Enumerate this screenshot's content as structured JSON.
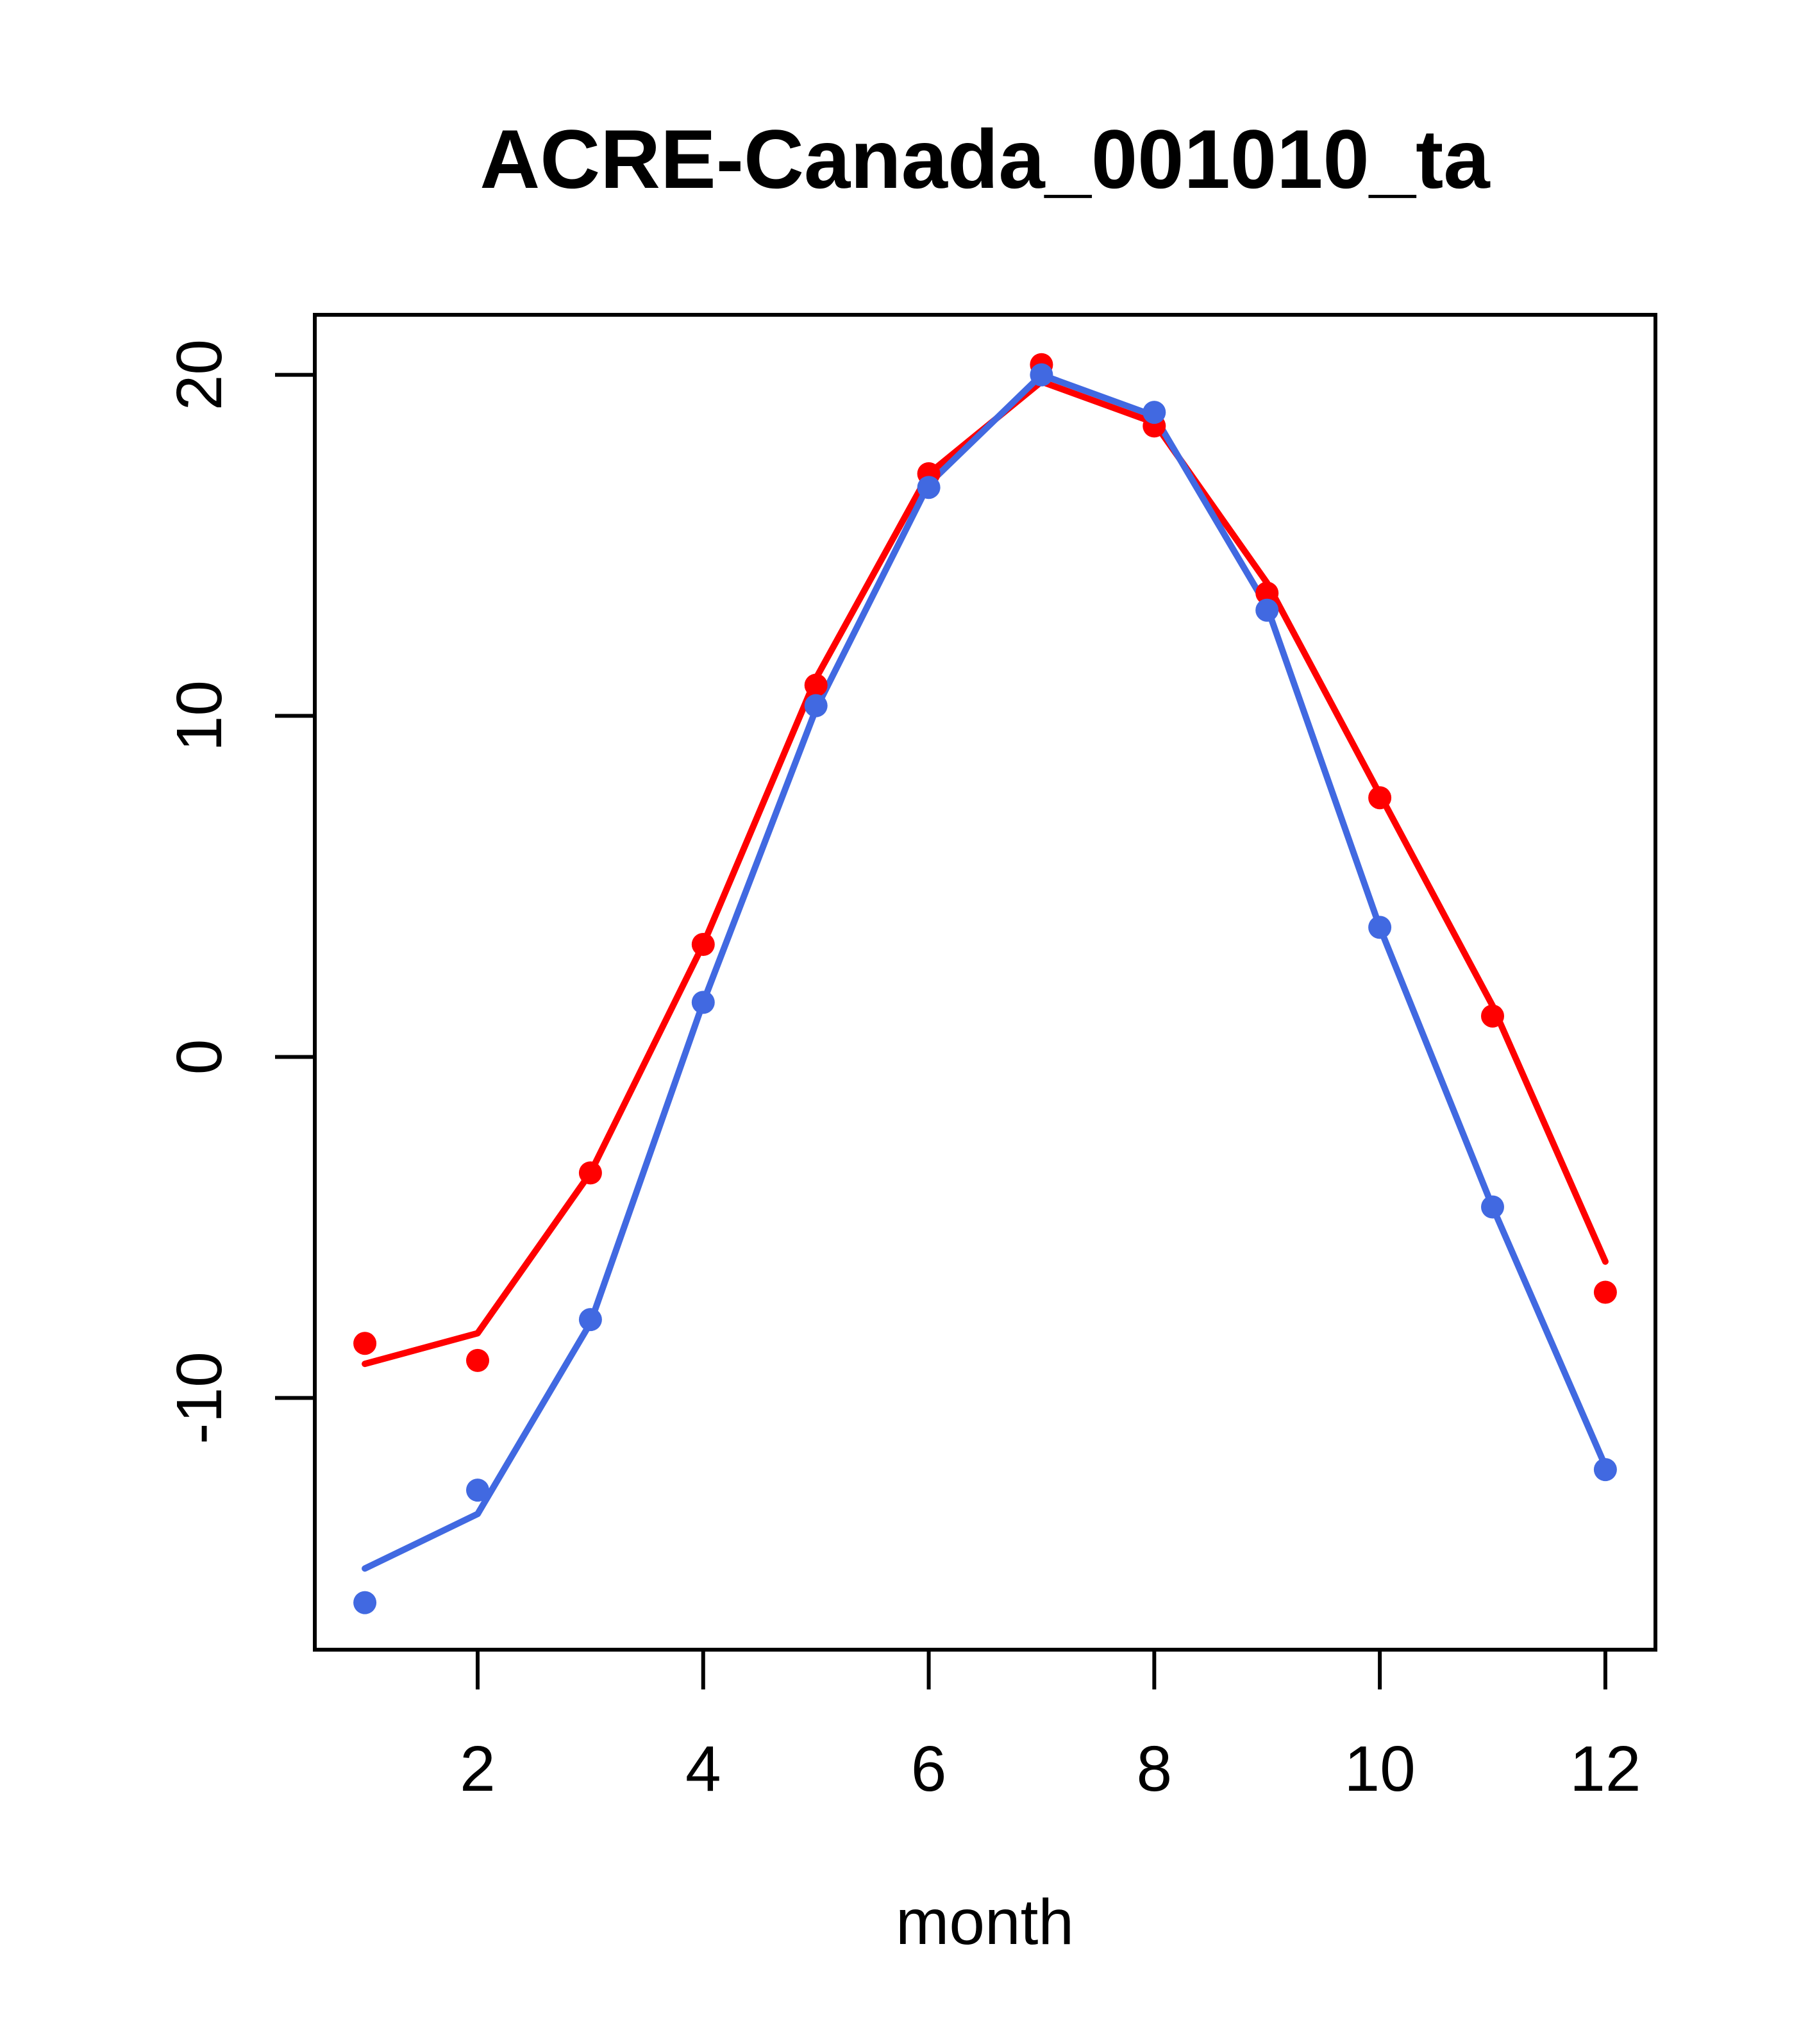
{
  "page": {
    "background": "#ffffff",
    "axis_color": "#000000"
  },
  "chart_data": {
    "type": "line",
    "title": "ACRE-Canada_001010_ta",
    "xlabel": "month",
    "ylabel": "",
    "x": [
      1,
      2,
      3,
      4,
      5,
      6,
      7,
      8,
      9,
      10,
      11,
      12
    ],
    "x_tick_values": [
      2,
      4,
      6,
      8,
      10,
      12
    ],
    "x_tick_labels": [
      "2",
      "4",
      "6",
      "8",
      "10",
      "12"
    ],
    "y_tick_values": [
      -10,
      0,
      10,
      20
    ],
    "y_tick_labels": [
      "-10",
      "0",
      "10",
      "20"
    ],
    "xlim": [
      0.556,
      12.444
    ],
    "ylim": [
      -17.38,
      21.76
    ],
    "grid": false,
    "legend_position": "none",
    "colors": {
      "red_series": "#ff0000",
      "blue_series": "#4169e1"
    },
    "series": [
      {
        "name": "red-line",
        "draw": "line",
        "color": "#ff0000",
        "values": [
          -9.0,
          -8.1,
          -3.4,
          3.3,
          11.1,
          17.1,
          19.8,
          18.6,
          13.9,
          7.7,
          1.5,
          -6.0
        ]
      },
      {
        "name": "blue-line",
        "draw": "line",
        "color": "#4169e1",
        "values": [
          -15.0,
          -13.4,
          -7.8,
          1.6,
          10.2,
          16.8,
          20.0,
          18.8,
          13.2,
          3.8,
          -4.4,
          -12.0
        ]
      },
      {
        "name": "red-points",
        "draw": "points",
        "color": "#ff0000",
        "values": [
          -8.4,
          -8.9,
          -3.4,
          3.3,
          10.9,
          17.1,
          20.3,
          18.5,
          13.6,
          7.6,
          1.2,
          -6.9
        ]
      },
      {
        "name": "blue-points",
        "draw": "points",
        "color": "#4169e1",
        "values": [
          -16.0,
          -12.7,
          -7.7,
          1.6,
          10.3,
          16.7,
          20.0,
          18.9,
          13.1,
          3.8,
          -4.4,
          -12.1
        ]
      }
    ]
  }
}
